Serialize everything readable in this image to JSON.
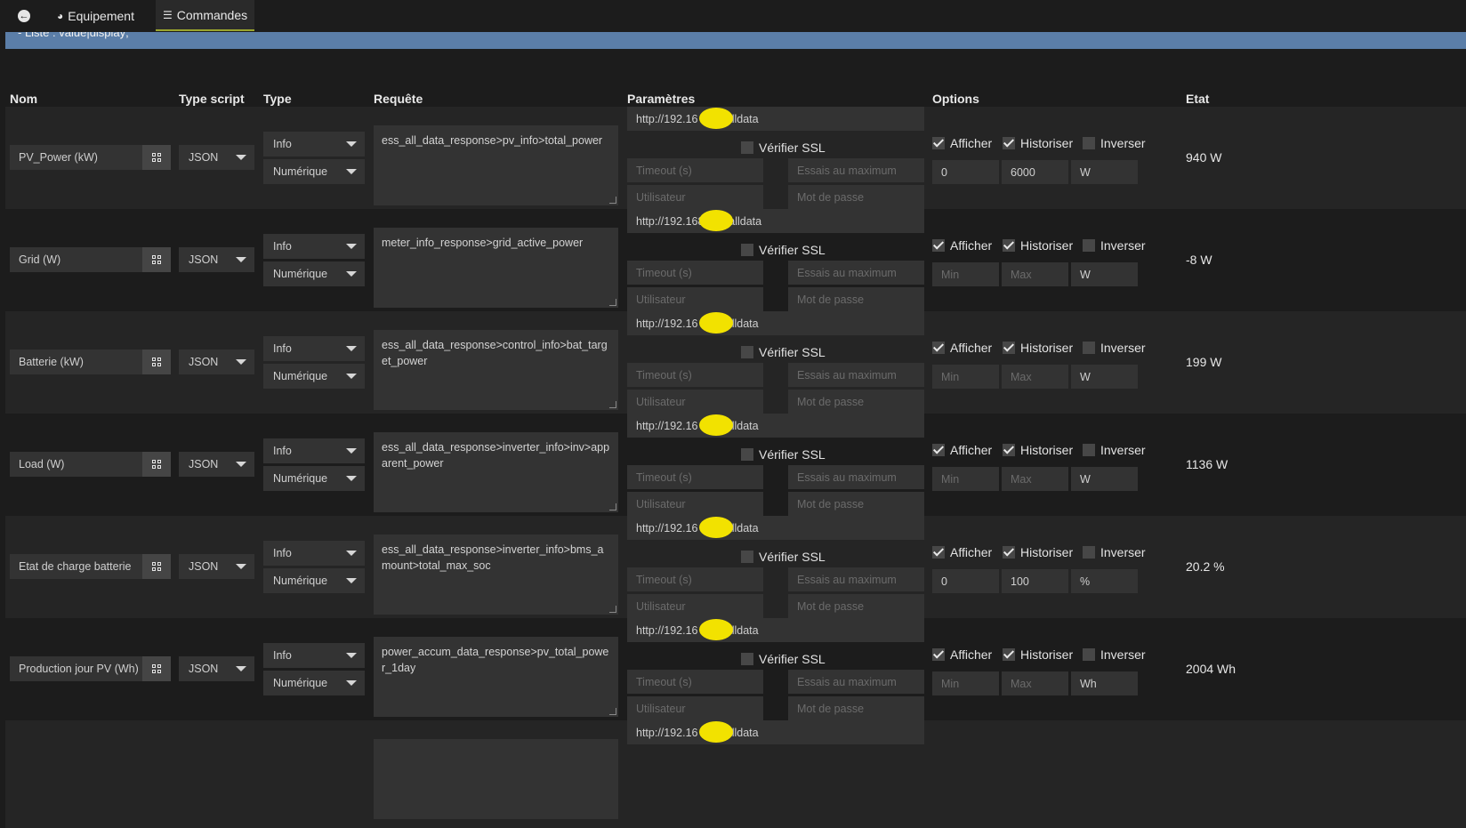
{
  "tabs": {
    "back_label": "",
    "equipement_label": "Equipement",
    "commandes_label": "Commandes"
  },
  "info_bar": "- Liste : value|display;",
  "headers": {
    "nom": "Nom",
    "type_script": "Type script",
    "type": "Type",
    "requete": "Requête",
    "parametres": "Paramètres",
    "options": "Options",
    "etat": "Etat"
  },
  "labels": {
    "verifier_ssl": "Vérifier SSL",
    "afficher": "Afficher",
    "historiser": "Historiser",
    "inverser": "Inverser"
  },
  "placeholders": {
    "timeout": "Timeout (s)",
    "essais": "Essais au maximum",
    "utilisateur": "Utilisateur",
    "mot_de_passe": "Mot de passe",
    "min": "Min",
    "max": "Max"
  },
  "commands": [
    {
      "name": "PV_Power (kW)",
      "script_type": "JSON",
      "type": "Info",
      "subtype": "Numérique",
      "request": "ess_all_data_response>pv_info>total_power",
      "url": "http://192.16        /alldata",
      "verify_ssl": false,
      "afficher": true,
      "historiser": true,
      "inverser": false,
      "min": "0",
      "max": "6000",
      "unit": "W",
      "state": "940 W"
    },
    {
      "name": "Grid (W)",
      "script_type": "JSON",
      "type": "Info",
      "subtype": "Numérique",
      "request": "meter_info_response>grid_active_power",
      "url": "http://192.168.      /alldata",
      "verify_ssl": false,
      "afficher": true,
      "historiser": true,
      "inverser": false,
      "min": "",
      "max": "",
      "unit": "W",
      "state": "-8 W"
    },
    {
      "name": "Batterie (kW)",
      "script_type": "JSON",
      "type": "Info",
      "subtype": "Numérique",
      "request": "ess_all_data_response>control_info>bat_target_power",
      "url": "http://192.16        /alldata",
      "verify_ssl": false,
      "afficher": true,
      "historiser": true,
      "inverser": false,
      "min": "",
      "max": "",
      "unit": "W",
      "state": "199 W"
    },
    {
      "name": "Load (W)",
      "script_type": "JSON",
      "type": "Info",
      "subtype": "Numérique",
      "request": "ess_all_data_response>inverter_info>inv>apparent_power",
      "url": "http://192.16        /alldata",
      "verify_ssl": false,
      "afficher": true,
      "historiser": true,
      "inverser": false,
      "min": "",
      "max": "",
      "unit": "W",
      "state": "1136 W"
    },
    {
      "name": "Etat de charge batterie",
      "script_type": "JSON",
      "type": "Info",
      "subtype": "Numérique",
      "request": "ess_all_data_response>inverter_info>bms_amount>total_max_soc",
      "url": "http://192.16        /alldata",
      "verify_ssl": false,
      "afficher": true,
      "historiser": true,
      "inverser": false,
      "min": "0",
      "max": "100",
      "unit": "%",
      "state": "20.2 %"
    },
    {
      "name": "Production jour PV (Wh)",
      "script_type": "JSON",
      "type": "Info",
      "subtype": "Numérique",
      "request": "power_accum_data_response>pv_total_power_1day",
      "url": "http://192.16        /alldata",
      "verify_ssl": false,
      "afficher": true,
      "historiser": true,
      "inverser": false,
      "min": "",
      "max": "",
      "unit": "Wh",
      "state": "2004 Wh"
    },
    {
      "name": "",
      "script_type": "",
      "type": "",
      "subtype": "",
      "request": "",
      "url": "http://192.16        /alldata",
      "verify_ssl": false,
      "afficher": false,
      "historiser": false,
      "inverser": false,
      "min": "",
      "max": "",
      "unit": "",
      "state": ""
    }
  ],
  "colors": {
    "background": "#1c1c1c",
    "row_alt": "#252525",
    "field": "#333333",
    "info_bar": "#5b7ea8",
    "tab_underline": "#9aa52d",
    "redaction": "#f2e200"
  }
}
